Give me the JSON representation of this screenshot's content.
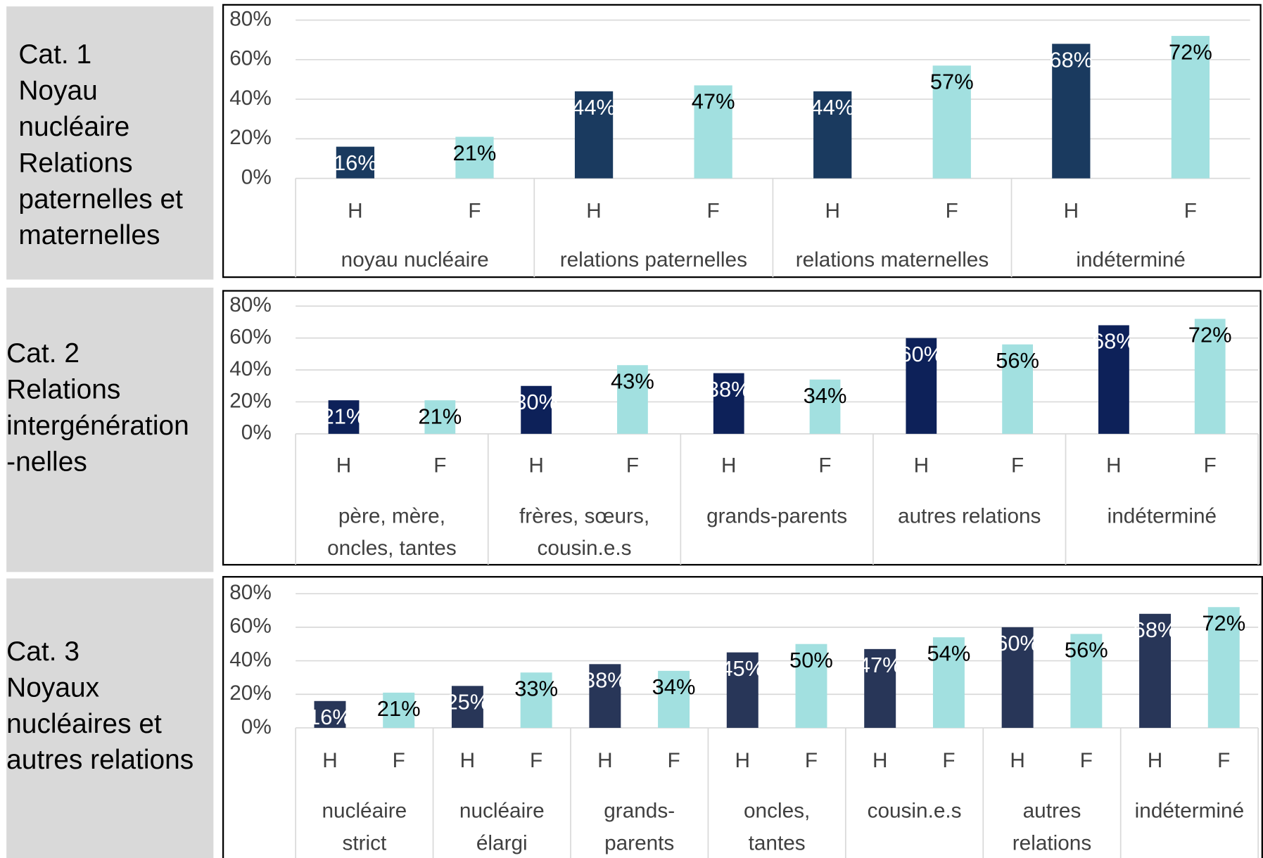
{
  "chart_data": [
    {
      "type": "bar",
      "title": [
        "Cat. 1",
        "Noyau",
        "nucléaire",
        "Relations",
        "paternelles et",
        "maternelles"
      ],
      "categories": [
        [
          "noyau nucléaire"
        ],
        [
          "relations paternelles"
        ],
        [
          "relations maternelles"
        ],
        [
          "indéterminé"
        ]
      ],
      "series": [
        {
          "name": "H",
          "color": "#1a3a5f",
          "values": [
            16,
            44,
            44,
            68
          ],
          "value_labels": [
            "16%",
            "44%",
            "44%",
            "68%"
          ]
        },
        {
          "name": "F",
          "color": "#a2e0e0",
          "values": [
            21,
            47,
            57,
            72
          ],
          "value_labels": [
            "21%",
            "47%",
            "57%",
            "72%"
          ]
        }
      ],
      "ylim": [
        0,
        80
      ],
      "yticks": [
        {
          "value": 0,
          "label": "0%"
        },
        {
          "value": 20,
          "label": "20%"
        },
        {
          "value": 40,
          "label": "40%"
        },
        {
          "value": 60,
          "label": "60%"
        },
        {
          "value": 80,
          "label": "80%"
        }
      ],
      "grid": true
    },
    {
      "type": "bar",
      "title": [
        "Cat. 2",
        "Relations",
        "intergénération",
        "-nelles"
      ],
      "categories": [
        [
          "père, mère,",
          "oncles, tantes"
        ],
        [
          "frères, sœurs,",
          "cousin.e.s"
        ],
        [
          "grands-parents"
        ],
        [
          "autres relations"
        ],
        [
          "indéterminé"
        ]
      ],
      "series": [
        {
          "name": "H",
          "color": "#0d2159",
          "values": [
            21,
            30,
            38,
            60,
            68
          ],
          "value_labels": [
            "21%",
            "30%",
            "38%",
            "60%",
            "68%"
          ]
        },
        {
          "name": "F",
          "color": "#a2e0e0",
          "values": [
            21,
            43,
            34,
            56,
            72
          ],
          "value_labels": [
            "21%",
            "43%",
            "34%",
            "56%",
            "72%"
          ]
        }
      ],
      "ylim": [
        0,
        80
      ],
      "yticks": [
        {
          "value": 0,
          "label": "0%"
        },
        {
          "value": 20,
          "label": "20%"
        },
        {
          "value": 40,
          "label": "40%"
        },
        {
          "value": 60,
          "label": "60%"
        },
        {
          "value": 80,
          "label": "80%"
        }
      ],
      "grid": true
    },
    {
      "type": "bar",
      "title": [
        "Cat. 3",
        "Noyaux",
        "nucléaires et",
        "autres relations"
      ],
      "categories": [
        [
          "nucléaire",
          "strict"
        ],
        [
          "nucléaire",
          "élargi"
        ],
        [
          "grands-",
          "parents"
        ],
        [
          "oncles,",
          "tantes"
        ],
        [
          "cousin.e.s"
        ],
        [
          "autres",
          "relations"
        ],
        [
          "indéterminé"
        ]
      ],
      "series": [
        {
          "name": "H",
          "color": "#283658",
          "values": [
            16,
            25,
            38,
            45,
            47,
            60,
            68
          ],
          "value_labels": [
            "16%",
            "25%",
            "38%",
            "45%",
            "47%",
            "60%",
            "68%"
          ]
        },
        {
          "name": "F",
          "color": "#a2e0e0",
          "values": [
            21,
            33,
            34,
            50,
            54,
            56,
            72
          ],
          "value_labels": [
            "21%",
            "33%",
            "34%",
            "50%",
            "54%",
            "56%",
            "72%"
          ]
        }
      ],
      "ylim": [
        0,
        80
      ],
      "yticks": [
        {
          "value": 0,
          "label": "0%"
        },
        {
          "value": 20,
          "label": "20%"
        },
        {
          "value": 40,
          "label": "40%"
        },
        {
          "value": 60,
          "label": "60%"
        },
        {
          "value": 80,
          "label": "80%"
        }
      ],
      "grid": true
    }
  ]
}
